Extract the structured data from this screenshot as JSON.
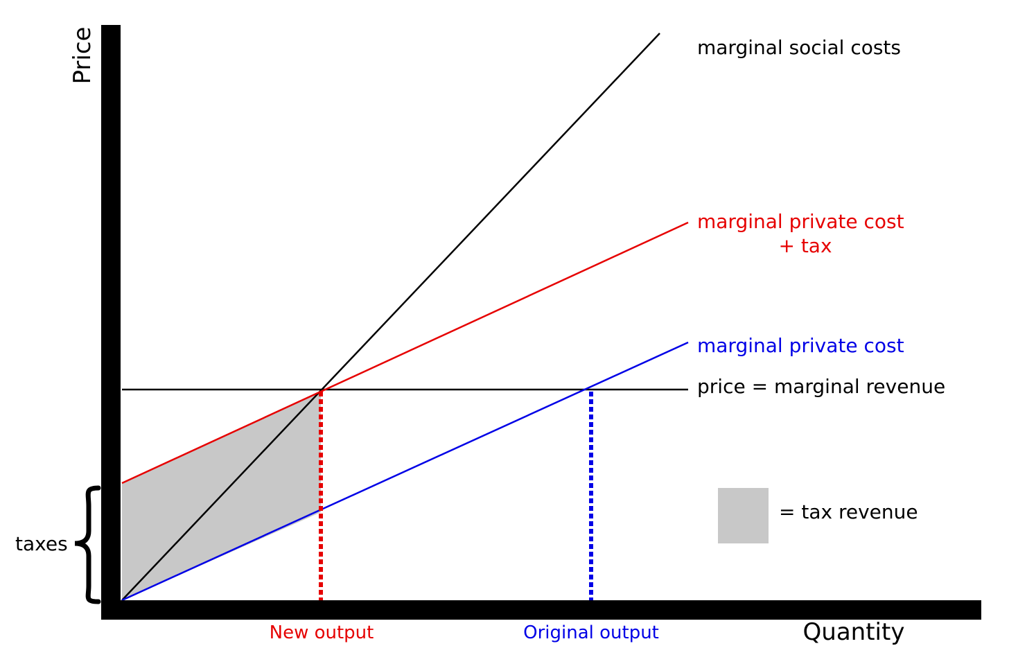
{
  "axes": {
    "y_label": "Price",
    "x_label": "Quantity"
  },
  "curves": {
    "msc": {
      "label": "marginal social costs",
      "color": "#000000"
    },
    "mpc_tax": {
      "label_line1": "marginal private cost",
      "label_line2": "+ tax",
      "color": "#e60000"
    },
    "mpc": {
      "label": "marginal private cost",
      "color": "#0000e6"
    },
    "price": {
      "label": "price = marginal revenue",
      "color": "#000000"
    }
  },
  "outputs": {
    "new": {
      "label": "New output",
      "color": "#e60000"
    },
    "original": {
      "label": "Original output",
      "color": "#0000e6"
    }
  },
  "taxes_label": "taxes",
  "legend": {
    "label": "= tax revenue",
    "swatch_color": "#c8c8c8"
  }
}
